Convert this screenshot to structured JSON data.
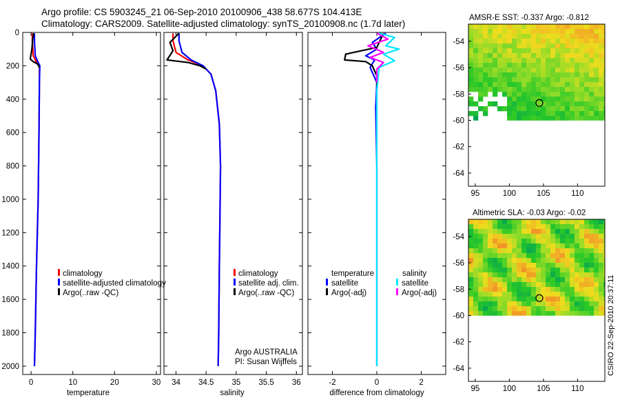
{
  "header": {
    "title_line1": "Argo profile: CS 5903245_21 06-Sep-2010 20100906_438 58.677S 104.413E",
    "title_line2": "Climatology: CARS2009. Satellite-adjusted climatology: synTS_20100908.nc (1.7d later)"
  },
  "chart_data": [
    {
      "type": "line",
      "title": "",
      "xlabel": "temperature",
      "ylabel": "",
      "xlim": [
        -2,
        31
      ],
      "ylim": [
        2050,
        0
      ],
      "xticks": [
        0,
        10,
        20,
        30
      ],
      "yticks": [
        0,
        200,
        400,
        600,
        800,
        1000,
        1200,
        1400,
        1600,
        1800,
        2000
      ],
      "series": [
        {
          "name": "climatology",
          "color": "#ff0000",
          "x": [
            0.3,
            0.3,
            0.5,
            1.2,
            2.0,
            2.0,
            1.9,
            1.7,
            1.3,
            1.0,
            0.8
          ],
          "y": [
            5,
            50,
            140,
            175,
            200,
            300,
            600,
            1000,
            1400,
            1800,
            2000
          ]
        },
        {
          "name": "satellite-adjusted climatology",
          "color": "#0000ff",
          "x": [
            0.8,
            0.8,
            1.0,
            1.6,
            2.1,
            2.0,
            1.9,
            1.7,
            1.3,
            1.0,
            0.8
          ],
          "y": [
            5,
            50,
            140,
            175,
            200,
            300,
            600,
            1000,
            1400,
            1800,
            2000
          ]
        },
        {
          "name": "Argo(..raw -QC)",
          "color": "#000000",
          "x": [
            0.6,
            0.4,
            0.2,
            -0.2,
            0.5,
            1.6,
            2.0
          ],
          "y": [
            5,
            40,
            100,
            160,
            175,
            190,
            210
          ]
        }
      ],
      "legend": [
        "climatology",
        "satellite-adjusted climatology",
        "Argo(..raw -QC)"
      ]
    },
    {
      "type": "line",
      "xlabel": "salinity",
      "xlim": [
        33.8,
        36.1
      ],
      "ylim": [
        2050,
        0
      ],
      "xticks": [
        34,
        34.5,
        35,
        35.5,
        36
      ],
      "series": [
        {
          "name": "climatology",
          "color": "#ff0000",
          "x": [
            33.95,
            33.95,
            34.0,
            34.2,
            34.45,
            34.58,
            34.66,
            34.72,
            34.74,
            34.73,
            34.72,
            34.71,
            34.7
          ],
          "y": [
            5,
            50,
            120,
            165,
            200,
            250,
            350,
            550,
            800,
            1100,
            1400,
            1800,
            2000
          ]
        },
        {
          "name": "satellite adj. clim.",
          "color": "#0000ff",
          "x": [
            34.05,
            34.05,
            34.1,
            34.25,
            34.45,
            34.58,
            34.66,
            34.72,
            34.74,
            34.73,
            34.72,
            34.71,
            34.7
          ],
          "y": [
            5,
            50,
            120,
            165,
            200,
            250,
            350,
            550,
            800,
            1100,
            1400,
            1800,
            2000
          ]
        },
        {
          "name": "Argo(..raw -QC)",
          "color": "#000000",
          "x": [
            34.05,
            33.9,
            33.95,
            33.85,
            34.2,
            34.4,
            34.5
          ],
          "y": [
            5,
            60,
            110,
            165,
            180,
            200,
            220
          ]
        }
      ],
      "legend": [
        "climatology",
        "satellite adj. clim.",
        "Argo(..raw -QC)"
      ],
      "annotation": [
        "Argo AUSTRALIA",
        "PI: Susan Wijffels"
      ]
    },
    {
      "type": "line",
      "xlabel": "difference from climatology",
      "xlim": [
        -3.1,
        3.1
      ],
      "ylim": [
        2050,
        0
      ],
      "xticks": [
        -2,
        0,
        2
      ],
      "series": [
        {
          "name": "temperature satellite",
          "color": "#0000ff",
          "x": [
            0.4,
            -0.2,
            0.0,
            -0.5,
            -0.1,
            -0.3,
            0.0,
            -0.05,
            0.0,
            0.0,
            0.0
          ],
          "y": [
            5,
            60,
            100,
            140,
            165,
            210,
            300,
            450,
            800,
            1400,
            2000
          ]
        },
        {
          "name": "temperature Argo(-adj)",
          "color": "#000000",
          "x": [
            0.3,
            0.0,
            -1.4,
            -1.45,
            -0.5,
            -0.2,
            0.0,
            0.0
          ],
          "y": [
            5,
            90,
            130,
            165,
            175,
            200,
            260,
            320
          ]
        },
        {
          "name": "salinity satellite",
          "color": "#00e5ff",
          "x": [
            0.1,
            0.8,
            0.4,
            1.0,
            0.3,
            0.8,
            0.1,
            0.0,
            0.0,
            0.0
          ],
          "y": [
            5,
            30,
            80,
            100,
            130,
            170,
            210,
            350,
            800,
            2000
          ]
        },
        {
          "name": "salinity Argo(-adj)",
          "color": "#ff00ff",
          "x": [
            0.0,
            0.5,
            -0.4,
            0.3,
            -0.3,
            0.3,
            0.0,
            0.0
          ],
          "y": [
            5,
            40,
            80,
            120,
            150,
            180,
            220,
            300
          ]
        }
      ],
      "legend": {
        "temperature_head": "temperature",
        "salinity_head": "salinity",
        "items": [
          "satellite",
          "Argo(-adj)",
          "satellite",
          "Argo(-adj)"
        ]
      }
    },
    {
      "type": "heatmap",
      "title": "AMSR-E SST: -0.337 Argo: -0.812",
      "xlim": [
        94,
        114
      ],
      "ylim": [
        -65,
        -52.7
      ],
      "xticks": [
        95,
        100,
        105,
        110
      ],
      "yticks": [
        -54,
        -56,
        -58,
        -60,
        -62,
        -64
      ],
      "marker": {
        "lon": 104.4,
        "lat": -58.68
      },
      "data_south_limit": -60
    },
    {
      "type": "heatmap",
      "title": "Altimetric SLA: -0.03 Argo: -0.02",
      "xlim": [
        94,
        114
      ],
      "ylim": [
        -65,
        -52.7
      ],
      "xticks": [
        95,
        100,
        105,
        110
      ],
      "yticks": [
        -54,
        -56,
        -58,
        -60,
        -62,
        -64
      ],
      "marker": {
        "lon": 104.4,
        "lat": -58.68
      },
      "data_south_limit": -60
    }
  ],
  "footer": {
    "credit": "CSIRO 22-Sep-2010 20:37:11"
  }
}
